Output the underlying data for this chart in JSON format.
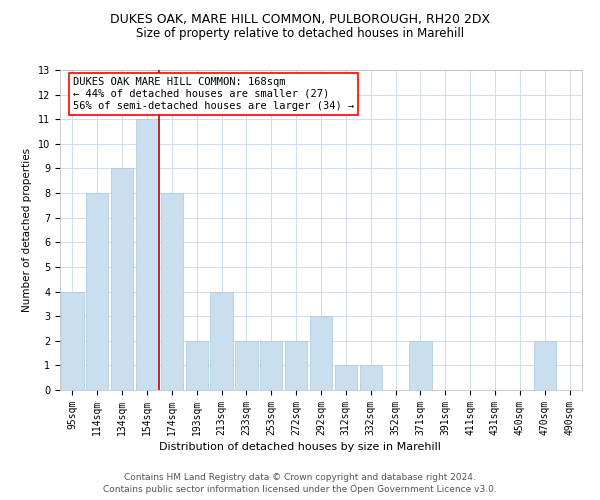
{
  "title1": "DUKES OAK, MARE HILL COMMON, PULBOROUGH, RH20 2DX",
  "title2": "Size of property relative to detached houses in Marehill",
  "xlabel": "Distribution of detached houses by size in Marehill",
  "ylabel": "Number of detached properties",
  "footer1": "Contains HM Land Registry data © Crown copyright and database right 2024.",
  "footer2": "Contains public sector information licensed under the Open Government Licence v3.0.",
  "annotation_line1": "DUKES OAK MARE HILL COMMON: 168sqm",
  "annotation_line2": "← 44% of detached houses are smaller (27)",
  "annotation_line3": "56% of semi-detached houses are larger (34) →",
  "bar_color": "#c9dff0",
  "bar_edge_color": "#a8c8e0",
  "ref_line_color": "#cc0000",
  "ref_line_x": 3.5,
  "categories": [
    "95sqm",
    "114sqm",
    "134sqm",
    "154sqm",
    "174sqm",
    "193sqm",
    "213sqm",
    "233sqm",
    "253sqm",
    "272sqm",
    "292sqm",
    "312sqm",
    "332sqm",
    "352sqm",
    "371sqm",
    "391sqm",
    "411sqm",
    "431sqm",
    "450sqm",
    "470sqm",
    "490sqm"
  ],
  "values": [
    4,
    8,
    9,
    11,
    8,
    2,
    4,
    2,
    2,
    2,
    3,
    1,
    1,
    0,
    2,
    0,
    0,
    0,
    0,
    2,
    0
  ],
  "ylim": [
    0,
    13
  ],
  "yticks": [
    0,
    1,
    2,
    3,
    4,
    5,
    6,
    7,
    8,
    9,
    10,
    11,
    12,
    13
  ],
  "title1_fontsize": 9,
  "title2_fontsize": 8.5,
  "xlabel_fontsize": 8,
  "ylabel_fontsize": 7.5,
  "tick_fontsize": 7,
  "footer_fontsize": 6.5,
  "annotation_fontsize": 7.5
}
